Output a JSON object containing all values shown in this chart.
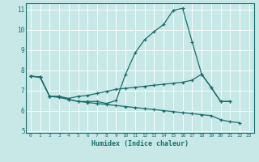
{
  "xlabel": "Humidex (Indice chaleur)",
  "bg_color": "#c8e8e8",
  "grid_color": "#ffffff",
  "line_color": "#1a6b6b",
  "xlim": [
    -0.5,
    23.5
  ],
  "ylim": [
    4.9,
    11.3
  ],
  "yticks": [
    5,
    6,
    7,
    8,
    9,
    10,
    11
  ],
  "xticks": [
    0,
    1,
    2,
    3,
    4,
    5,
    6,
    7,
    8,
    9,
    10,
    11,
    12,
    13,
    14,
    15,
    16,
    17,
    18,
    19,
    20,
    21,
    22,
    23
  ],
  "line1_y": [
    7.7,
    7.65,
    6.7,
    6.7,
    6.55,
    6.45,
    6.45,
    6.45,
    6.35,
    6.5,
    7.8,
    8.85,
    9.5,
    9.9,
    10.25,
    10.95,
    11.05,
    9.4,
    7.8,
    7.15,
    6.45,
    6.45,
    null,
    null
  ],
  "line2_y": [
    7.7,
    7.65,
    6.7,
    6.7,
    6.6,
    6.7,
    6.75,
    6.85,
    6.95,
    7.05,
    7.1,
    7.15,
    7.2,
    7.25,
    7.3,
    7.35,
    7.4,
    7.5,
    7.8,
    7.15,
    6.45,
    6.45,
    null,
    null
  ],
  "line3_y": [
    7.7,
    7.65,
    6.7,
    6.65,
    6.55,
    6.45,
    6.4,
    6.35,
    6.3,
    6.25,
    6.2,
    6.15,
    6.1,
    6.05,
    6.0,
    5.95,
    5.9,
    5.85,
    5.8,
    5.75,
    5.55,
    5.45,
    5.4,
    null
  ]
}
